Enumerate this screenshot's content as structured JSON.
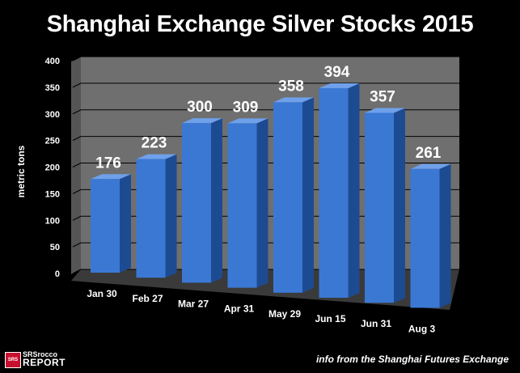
{
  "chart_data": {
    "type": "bar",
    "title": "Shanghai Exchange Silver Stocks 2015",
    "xlabel": "",
    "ylabel": "metric tons",
    "ylim": [
      0,
      400
    ],
    "yticks": [
      0,
      50,
      100,
      150,
      200,
      250,
      300,
      350,
      400
    ],
    "categories": [
      "Jan 30",
      "Feb 27",
      "Mar 27",
      "Apr 31",
      "May 29",
      "Jun 15",
      "Jun 31",
      "Aug 3"
    ],
    "values": [
      176,
      223,
      300,
      309,
      358,
      394,
      357,
      261
    ],
    "data_labels": [
      "176",
      "223",
      "300",
      "309",
      "358",
      "394",
      "357",
      "261"
    ],
    "grid": true,
    "legend": "none",
    "style": "3d"
  },
  "colors": {
    "background": "#000000",
    "bar_front": "#3a78d4",
    "bar_side": "#1d4b92",
    "bar_top": "#6fa0ea",
    "wall": "#6f6f6f",
    "floor": "#3a3a3a"
  },
  "source_note": "info from the Shanghai Futures Exchange",
  "logo": {
    "badge": "SRS",
    "line1": "SRSrocco",
    "line2": "REPORT"
  }
}
